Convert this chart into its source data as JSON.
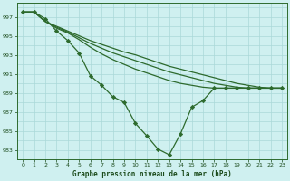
{
  "title": "Graphe pression niveau de la mer (hPa)",
  "background_color": "#cff0f0",
  "grid_color": "#aad8d8",
  "line_color": "#2d6a2d",
  "xlim": [
    -0.5,
    23.5
  ],
  "ylim": [
    982.0,
    998.5
  ],
  "yticks": [
    983,
    985,
    987,
    989,
    991,
    993,
    995,
    997
  ],
  "xticks": [
    0,
    1,
    2,
    3,
    4,
    5,
    6,
    7,
    8,
    9,
    10,
    11,
    12,
    13,
    14,
    15,
    16,
    17,
    18,
    19,
    20,
    21,
    22,
    23
  ],
  "line_main": [
    997.5,
    997.5,
    996.8,
    995.5,
    994.5,
    993.2,
    990.8,
    989.8,
    988.6,
    988.0,
    985.8,
    984.5,
    983.1,
    982.5,
    984.7,
    987.5,
    988.2,
    989.5,
    989.5,
    989.5,
    989.5,
    989.5,
    989.5,
    989.5
  ],
  "line_flat1": [
    997.5,
    997.5,
    996.5,
    995.8,
    995.3,
    994.6,
    993.8,
    993.1,
    992.5,
    992.0,
    991.5,
    991.1,
    990.7,
    990.3,
    990.0,
    989.8,
    989.6,
    989.5,
    989.5,
    989.5,
    989.5,
    989.5,
    989.5,
    989.5
  ],
  "line_flat2": [
    997.5,
    997.5,
    996.5,
    995.9,
    995.4,
    994.8,
    994.2,
    993.7,
    993.2,
    992.8,
    992.4,
    992.0,
    991.6,
    991.2,
    990.9,
    990.6,
    990.3,
    990.0,
    989.8,
    989.6,
    989.5,
    989.5,
    989.5,
    989.5
  ],
  "line_flat3": [
    997.5,
    997.5,
    996.5,
    996.0,
    995.5,
    995.0,
    994.5,
    994.1,
    993.7,
    993.3,
    993.0,
    992.6,
    992.2,
    991.8,
    991.5,
    991.2,
    990.9,
    990.6,
    990.3,
    990.0,
    989.8,
    989.6,
    989.5,
    989.5
  ]
}
